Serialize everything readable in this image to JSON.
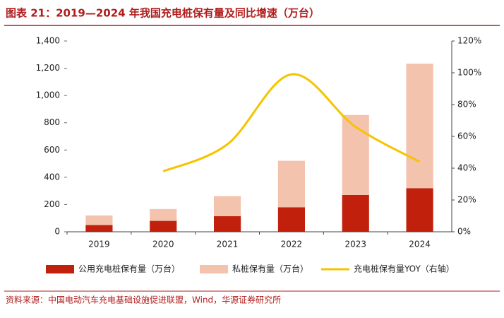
{
  "chart_data": {
    "type": "bar",
    "stacked": true,
    "title": "图表 21：2019—2024 年我国充电桩保有量及同比增速（万台）",
    "source": "资料来源：中国电动汽车充电基础设施促进联盟，Wind，华源证券研究所",
    "categories": [
      "2019",
      "2020",
      "2021",
      "2022",
      "2023",
      "2024"
    ],
    "series": [
      {
        "name": "公用充电桩保有量（万台）",
        "color": "#c0200c",
        "values": [
          50,
          80,
          115,
          180,
          270,
          320
        ]
      },
      {
        "name": "私桩保有量（万台）",
        "color": "#f4c3ad",
        "values": [
          70,
          87,
          147,
          341,
          587,
          914
        ]
      },
      {
        "name": "充电桩保有量YOY（右轴）",
        "color": "#f5c400",
        "type": "line",
        "axis": "y2",
        "values": [
          null,
          38,
          55,
          99,
          66,
          44
        ]
      }
    ],
    "ylim": [
      0,
      1400
    ],
    "yticks": [
      0,
      200,
      400,
      600,
      800,
      {
        "value": 1000,
        "label": "1,000"
      },
      {
        "value": 1200,
        "label": "1,200"
      },
      {
        "value": 1400,
        "label": "1,400"
      }
    ],
    "y2lim": [
      0,
      120
    ],
    "y2ticks": [
      {
        "value": 0,
        "label": "0%"
      },
      {
        "value": 20,
        "label": "20%"
      },
      {
        "value": 40,
        "label": "40%"
      },
      {
        "value": 60,
        "label": "60%"
      },
      {
        "value": 80,
        "label": "80%"
      },
      {
        "value": 100,
        "label": "100%"
      },
      {
        "value": 120,
        "label": "120%"
      }
    ],
    "legend": "bottom",
    "grid": false
  }
}
